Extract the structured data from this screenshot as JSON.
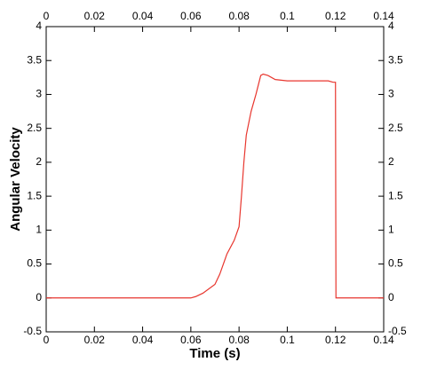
{
  "chart_data": {
    "type": "line",
    "x_label": "Time (s)",
    "y_label": "Angular Velocity",
    "x": [
      0,
      0.02,
      0.04,
      0.06,
      0.062,
      0.065,
      0.07,
      0.072,
      0.075,
      0.078,
      0.08,
      0.081,
      0.082,
      0.083,
      0.085,
      0.087,
      0.089,
      0.09,
      0.092,
      0.095,
      0.1,
      0.11,
      0.117,
      0.119,
      0.12,
      0.1202,
      0.13,
      0.14
    ],
    "series": [
      {
        "color": "#e8362e",
        "values": [
          0,
          0,
          0,
          0,
          0.02,
          0.07,
          0.2,
          0.35,
          0.65,
          0.85,
          1.05,
          1.5,
          2.0,
          2.4,
          2.75,
          3.0,
          3.28,
          3.3,
          3.28,
          3.22,
          3.2,
          3.2,
          3.2,
          3.18,
          3.18,
          0,
          0,
          0
        ]
      }
    ],
    "xlim": [
      0,
      0.14
    ],
    "xticks": [
      0,
      0.02,
      0.04,
      0.06,
      0.08,
      0.1,
      0.12,
      0.14
    ],
    "ylim": [
      -0.5,
      4
    ],
    "yticks": [
      -0.5,
      0,
      0.5,
      1,
      1.5,
      2,
      2.5,
      3,
      3.5,
      4
    ],
    "grid": false
  }
}
